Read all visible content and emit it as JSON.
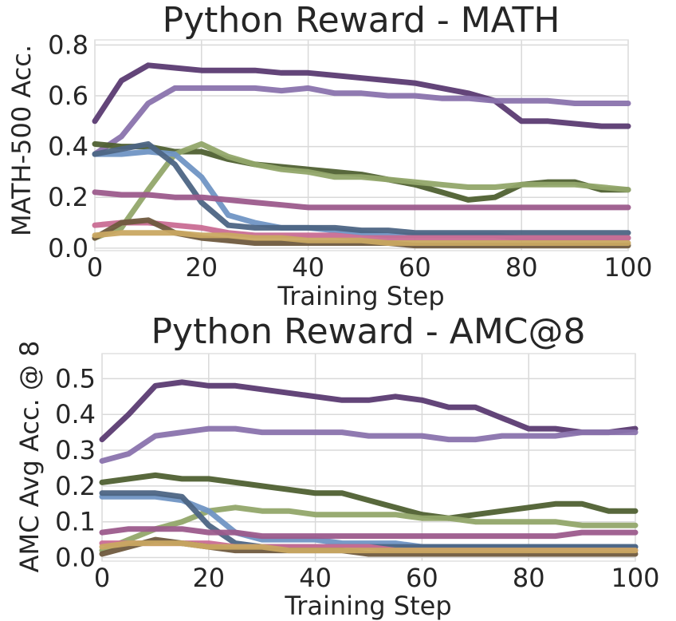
{
  "chart_data": [
    {
      "type": "line",
      "title": "Python Reward - MATH",
      "xlabel": "Training Step",
      "ylabel": "MATH-500 Acc.",
      "xlim": [
        0,
        100
      ],
      "ylim": [
        -0.01,
        0.82
      ],
      "xticks": [
        0,
        20,
        40,
        60,
        80,
        100
      ],
      "yticks": [
        0.0,
        0.2,
        0.4,
        0.6,
        0.8
      ],
      "ytick_labels": [
        "0.0",
        "0.2",
        "0.4",
        "0.6",
        "0.8"
      ],
      "grid": true,
      "x": [
        0,
        5,
        10,
        15,
        20,
        25,
        30,
        35,
        40,
        45,
        50,
        55,
        60,
        65,
        70,
        75,
        80,
        85,
        90,
        95,
        100
      ],
      "series": [
        {
          "color": "#5b3b72",
          "values": [
            0.5,
            0.66,
            0.72,
            0.71,
            0.7,
            0.7,
            0.7,
            0.69,
            0.69,
            0.68,
            0.67,
            0.66,
            0.65,
            0.63,
            0.61,
            0.58,
            0.5,
            0.5,
            0.49,
            0.48,
            0.48
          ]
        },
        {
          "color": "#8a73ad",
          "values": [
            0.37,
            0.44,
            0.57,
            0.63,
            0.63,
            0.63,
            0.63,
            0.62,
            0.63,
            0.61,
            0.61,
            0.6,
            0.6,
            0.59,
            0.59,
            0.58,
            0.58,
            0.58,
            0.57,
            0.57,
            0.57
          ]
        },
        {
          "color": "#4f6032",
          "values": [
            0.41,
            0.4,
            0.4,
            0.38,
            0.38,
            0.35,
            0.33,
            0.32,
            0.31,
            0.3,
            0.29,
            0.27,
            0.25,
            0.22,
            0.19,
            0.2,
            0.25,
            0.26,
            0.26,
            0.23,
            0.23
          ]
        },
        {
          "color": "#92a66a",
          "values": [
            0.04,
            0.08,
            0.23,
            0.37,
            0.41,
            0.36,
            0.33,
            0.31,
            0.3,
            0.28,
            0.28,
            0.27,
            0.26,
            0.25,
            0.24,
            0.24,
            0.25,
            0.25,
            0.25,
            0.24,
            0.23
          ]
        },
        {
          "color": "#7095c4",
          "values": [
            0.37,
            0.37,
            0.38,
            0.37,
            0.28,
            0.13,
            0.1,
            0.08,
            0.08,
            0.07,
            0.06,
            0.05,
            0.05,
            0.05,
            0.05,
            0.05,
            0.04,
            0.04,
            0.04,
            0.04,
            0.04
          ]
        },
        {
          "color": "#4d6584",
          "values": [
            0.37,
            0.39,
            0.41,
            0.33,
            0.18,
            0.09,
            0.08,
            0.08,
            0.08,
            0.08,
            0.07,
            0.07,
            0.06,
            0.06,
            0.06,
            0.06,
            0.06,
            0.06,
            0.06,
            0.06,
            0.06
          ]
        },
        {
          "color": "#9c5b8c",
          "values": [
            0.22,
            0.21,
            0.21,
            0.2,
            0.2,
            0.19,
            0.18,
            0.17,
            0.16,
            0.16,
            0.16,
            0.16,
            0.16,
            0.16,
            0.16,
            0.16,
            0.16,
            0.16,
            0.16,
            0.16,
            0.16
          ]
        },
        {
          "color": "#c96d94",
          "values": [
            0.09,
            0.1,
            0.1,
            0.09,
            0.08,
            0.06,
            0.05,
            0.05,
            0.05,
            0.05,
            0.04,
            0.04,
            0.04,
            0.04,
            0.04,
            0.04,
            0.04,
            0.04,
            0.04,
            0.04,
            0.04
          ]
        },
        {
          "color": "#6f5a3e",
          "values": [
            0.04,
            0.1,
            0.11,
            0.06,
            0.04,
            0.03,
            0.02,
            0.02,
            0.02,
            0.02,
            0.02,
            0.02,
            0.01,
            0.01,
            0.01,
            0.01,
            0.01,
            0.01,
            0.01,
            0.01,
            0.01
          ]
        },
        {
          "color": "#c9a862",
          "values": [
            0.05,
            0.06,
            0.06,
            0.06,
            0.05,
            0.05,
            0.04,
            0.04,
            0.03,
            0.03,
            0.03,
            0.02,
            0.02,
            0.02,
            0.02,
            0.02,
            0.02,
            0.02,
            0.02,
            0.02,
            0.02
          ]
        }
      ]
    },
    {
      "type": "line",
      "title": "Python Reward - AMC@8",
      "xlabel": "Training Step",
      "ylabel": "AMC Avg Acc. @ 8",
      "xlim": [
        0,
        100
      ],
      "ylim": [
        -0.01,
        0.57
      ],
      "xticks": [
        0,
        20,
        40,
        60,
        80,
        100
      ],
      "yticks": [
        0.0,
        0.1,
        0.2,
        0.3,
        0.4,
        0.5
      ],
      "ytick_labels": [
        "0.0",
        "0.1",
        "0.2",
        "0.3",
        "0.4",
        "0.5"
      ],
      "grid": true,
      "x": [
        0,
        5,
        10,
        15,
        20,
        25,
        30,
        35,
        40,
        45,
        50,
        55,
        60,
        65,
        70,
        75,
        80,
        85,
        90,
        95,
        100
      ],
      "series": [
        {
          "color": "#5b3b72",
          "values": [
            0.33,
            0.4,
            0.48,
            0.49,
            0.48,
            0.48,
            0.47,
            0.46,
            0.45,
            0.44,
            0.44,
            0.45,
            0.44,
            0.42,
            0.42,
            0.39,
            0.36,
            0.36,
            0.35,
            0.35,
            0.36
          ]
        },
        {
          "color": "#8a73ad",
          "values": [
            0.27,
            0.29,
            0.34,
            0.35,
            0.36,
            0.36,
            0.35,
            0.35,
            0.35,
            0.35,
            0.34,
            0.34,
            0.34,
            0.33,
            0.33,
            0.34,
            0.34,
            0.34,
            0.35,
            0.35,
            0.35
          ]
        },
        {
          "color": "#4f6032",
          "values": [
            0.21,
            0.22,
            0.23,
            0.22,
            0.22,
            0.21,
            0.2,
            0.19,
            0.18,
            0.18,
            0.16,
            0.14,
            0.12,
            0.11,
            0.12,
            0.13,
            0.14,
            0.15,
            0.15,
            0.13,
            0.13
          ]
        },
        {
          "color": "#92a66a",
          "values": [
            0.02,
            0.05,
            0.08,
            0.1,
            0.13,
            0.14,
            0.13,
            0.13,
            0.12,
            0.12,
            0.12,
            0.12,
            0.11,
            0.11,
            0.1,
            0.1,
            0.1,
            0.1,
            0.09,
            0.09,
            0.09
          ]
        },
        {
          "color": "#7095c4",
          "values": [
            0.17,
            0.17,
            0.17,
            0.16,
            0.13,
            0.07,
            0.05,
            0.05,
            0.05,
            0.04,
            0.04,
            0.04,
            0.03,
            0.03,
            0.03,
            0.03,
            0.03,
            0.03,
            0.03,
            0.03,
            0.03
          ]
        },
        {
          "color": "#4d6584",
          "values": [
            0.18,
            0.18,
            0.18,
            0.17,
            0.09,
            0.04,
            0.03,
            0.03,
            0.03,
            0.03,
            0.03,
            0.03,
            0.03,
            0.03,
            0.03,
            0.03,
            0.03,
            0.03,
            0.03,
            0.03,
            0.03
          ]
        },
        {
          "color": "#9c5b8c",
          "values": [
            0.07,
            0.08,
            0.08,
            0.08,
            0.07,
            0.07,
            0.06,
            0.06,
            0.06,
            0.06,
            0.06,
            0.06,
            0.06,
            0.06,
            0.06,
            0.06,
            0.06,
            0.06,
            0.07,
            0.07,
            0.07
          ]
        },
        {
          "color": "#c96d94",
          "values": [
            0.04,
            0.04,
            0.04,
            0.04,
            0.04,
            0.03,
            0.03,
            0.03,
            0.03,
            0.03,
            0.03,
            0.02,
            0.02,
            0.02,
            0.02,
            0.02,
            0.02,
            0.02,
            0.02,
            0.02,
            0.02
          ]
        },
        {
          "color": "#6f5a3e",
          "values": [
            0.01,
            0.03,
            0.05,
            0.04,
            0.03,
            0.02,
            0.02,
            0.02,
            0.02,
            0.02,
            0.01,
            0.01,
            0.01,
            0.01,
            0.01,
            0.01,
            0.01,
            0.01,
            0.01,
            0.01,
            0.01
          ]
        },
        {
          "color": "#c9a862",
          "values": [
            0.03,
            0.04,
            0.04,
            0.04,
            0.03,
            0.03,
            0.03,
            0.02,
            0.02,
            0.02,
            0.02,
            0.02,
            0.02,
            0.02,
            0.02,
            0.02,
            0.02,
            0.02,
            0.02,
            0.02,
            0.02
          ]
        }
      ]
    }
  ]
}
